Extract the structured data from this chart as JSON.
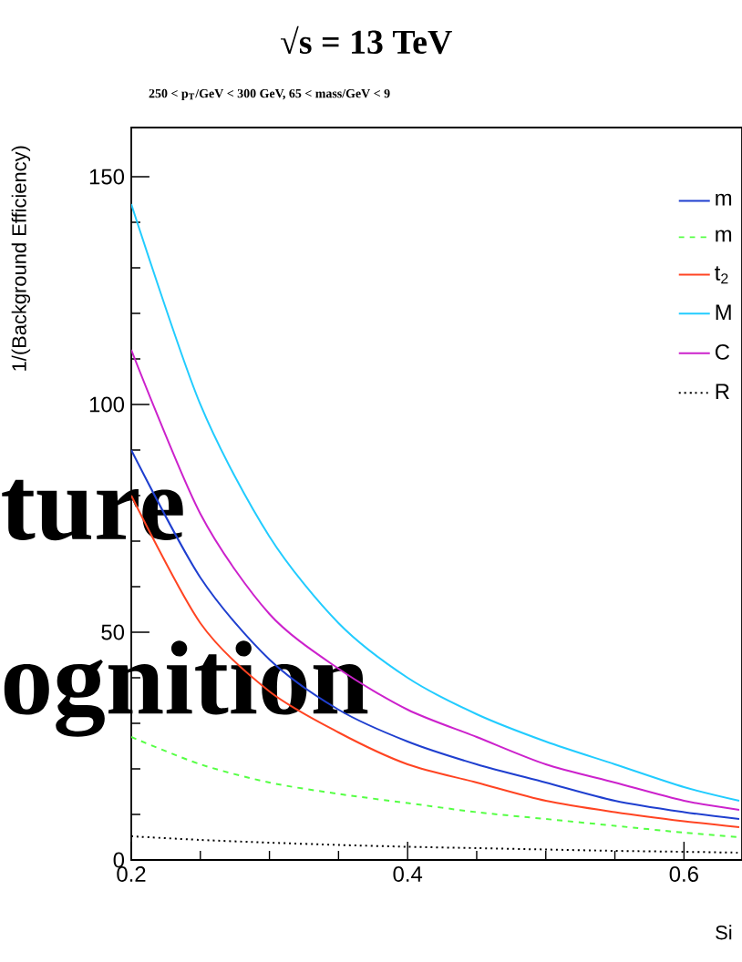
{
  "chart_data": {
    "type": "line",
    "title": "√s = 13 TeV",
    "subtitle": "250 < p$_{T}$/GeV < 300 GeV, 65 < mass/GeV < 9",
    "xlabel": "Si",
    "ylabel": "1/(Background Efficiency)",
    "x": [
      0.2,
      0.25,
      0.3,
      0.35,
      0.4,
      0.45,
      0.5,
      0.55,
      0.6,
      0.64
    ],
    "series": [
      {
        "name": "m",
        "color": "#1f3fcf",
        "values": [
          90,
          62,
          44,
          33,
          26,
          21,
          17,
          13,
          10.5,
          9
        ]
      },
      {
        "name": "m",
        "color": "#55ff44",
        "line_style": "dashed",
        "values": [
          27,
          21,
          17,
          14.5,
          12.5,
          10.5,
          9,
          7.5,
          6,
          5
        ]
      },
      {
        "name": "t$_{2}$",
        "color": "#ff4422",
        "values": [
          80,
          52,
          37,
          28,
          21,
          17,
          13,
          10.5,
          8.5,
          7.2
        ]
      },
      {
        "name": "M",
        "color": "#22ccff",
        "values": [
          144,
          100,
          71,
          52,
          40,
          32,
          26,
          21,
          16,
          13
        ]
      },
      {
        "name": "C",
        "color": "#cc22cc",
        "values": [
          112,
          76,
          54,
          42,
          33,
          27,
          21,
          17,
          13,
          11
        ]
      },
      {
        "name": "R",
        "color": "#000000",
        "line_style": "dotted",
        "values": [
          5.2,
          4.4,
          3.8,
          3.3,
          2.9,
          2.6,
          2.3,
          2.0,
          1.8,
          1.6
        ]
      }
    ],
    "xlim": [
      0.2,
      0.642
    ],
    "ylim": [
      0,
      160.8
    ],
    "xticks": [
      0.2,
      0.4,
      0.6
    ],
    "yticks": [
      0,
      50,
      100,
      150
    ],
    "legend": "top right",
    "grid": false,
    "marker": "none",
    "annotations": [
      "ture",
      "ognition"
    ]
  }
}
